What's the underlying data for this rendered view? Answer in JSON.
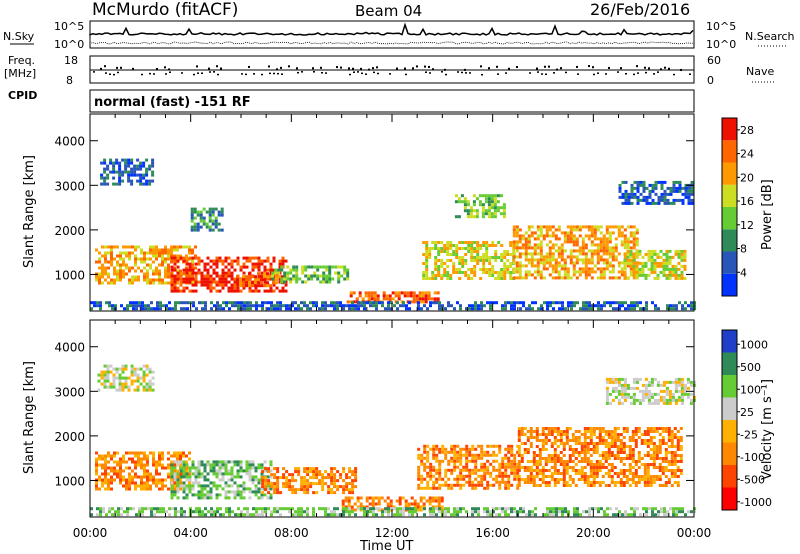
{
  "header": {
    "station": "McMurdo (fitACF)",
    "beam": "Beam 04",
    "date": "26/Feb/2016"
  },
  "top_panels": {
    "nsky_label": "N.Sky",
    "nsearch_label": "N.Search",
    "freq_label": "Freq.",
    "freq_unit": "[MHz]",
    "nave_label": "Nave",
    "cpid_label": "CPID",
    "cpid_text": "normal (fast) -151 RF",
    "noise_ticks": [
      "10^5",
      "10^0"
    ],
    "freq_ticks": [
      "18",
      "8"
    ],
    "nave_ticks": [
      "60",
      "0"
    ]
  },
  "colors": {
    "power": [
      "#0033ff",
      "#2855b8",
      "#2e8b57",
      "#66cc33",
      "#ccdd22",
      "#ff9900",
      "#ff6600",
      "#ee1100"
    ],
    "velocity": [
      "#1f3fc8",
      "#2e8b57",
      "#66cc33",
      "#cccccc",
      "#ffb000",
      "#ff8800",
      "#ff4400",
      "#ff0000"
    ]
  },
  "chart_data": [
    {
      "type": "heatmap",
      "name": "power",
      "ylabel": "Slant Range [km]",
      "xlabel": "Time UT",
      "x_ticks": [
        "00:00",
        "04:00",
        "08:00",
        "12:00",
        "16:00",
        "20:00",
        "00:00"
      ],
      "y_ticks": [
        "1000",
        "2000",
        "3000",
        "4000"
      ],
      "ylim": [
        180,
        4600
      ],
      "xlim": [
        0,
        24
      ],
      "colorbar": {
        "label": "Power [dB]",
        "ticks": [
          "4",
          "8",
          "12",
          "16",
          "20",
          "24",
          "28"
        ],
        "range": [
          0,
          30
        ]
      },
      "regions": [
        {
          "t0": 0.2,
          "t1": 4.2,
          "r0": 820,
          "r1": 1650,
          "level": 5
        },
        {
          "t0": 3.2,
          "t1": 7.8,
          "r0": 650,
          "r1": 1400,
          "level": 7
        },
        {
          "t0": 5.8,
          "t1": 7.6,
          "r0": 780,
          "r1": 1050,
          "level": 6
        },
        {
          "t0": 7.2,
          "t1": 10.2,
          "r0": 820,
          "r1": 1200,
          "level": 3
        },
        {
          "t0": 10.2,
          "t1": 13.8,
          "r0": 380,
          "r1": 620,
          "level": 6
        },
        {
          "t0": 13.2,
          "t1": 16.8,
          "r0": 880,
          "r1": 1750,
          "level": 4
        },
        {
          "t0": 14.5,
          "t1": 16.5,
          "r0": 2300,
          "r1": 2800,
          "level": 3
        },
        {
          "t0": 16.8,
          "t1": 21.8,
          "r0": 950,
          "r1": 2100,
          "level": 5
        },
        {
          "t0": 21.2,
          "t1": 23.6,
          "r0": 900,
          "r1": 1550,
          "level": 4
        },
        {
          "t0": 21.0,
          "t1": 23.9,
          "r0": 2600,
          "r1": 3100,
          "level": 1
        },
        {
          "t0": 0.4,
          "t1": 2.5,
          "r0": 3000,
          "r1": 3600,
          "level": 1
        },
        {
          "t0": 4.0,
          "t1": 5.2,
          "r0": 2000,
          "r1": 2500,
          "level": 2
        },
        {
          "t0": 0.0,
          "t1": 24.0,
          "r0": 240,
          "r1": 400,
          "level": 1
        }
      ]
    },
    {
      "type": "heatmap",
      "name": "velocity",
      "ylabel": "Slant Range [km]",
      "xlabel": "Time UT",
      "x_ticks": [
        "00:00",
        "04:00",
        "08:00",
        "12:00",
        "16:00",
        "20:00",
        "00:00"
      ],
      "y_ticks": [
        "1000",
        "2000",
        "3000",
        "4000"
      ],
      "ylim": [
        180,
        4600
      ],
      "xlim": [
        0,
        24
      ],
      "colorbar": {
        "label": "Velocity [m s⁻¹]",
        "ticks": [
          "1000",
          "500",
          "100",
          "25",
          "-25",
          "-100",
          "-500",
          "-1000"
        ],
        "range": [
          -1000,
          1000
        ]
      },
      "regions": [
        {
          "t0": 0.2,
          "t1": 4.0,
          "r0": 820,
          "r1": 1650,
          "level": 5
        },
        {
          "t0": 3.2,
          "t1": 7.2,
          "r0": 600,
          "r1": 1450,
          "level": 2
        },
        {
          "t0": 6.8,
          "t1": 10.5,
          "r0": 750,
          "r1": 1300,
          "level": 5
        },
        {
          "t0": 10.0,
          "t1": 14.0,
          "r0": 360,
          "r1": 640,
          "level": 5
        },
        {
          "t0": 13.0,
          "t1": 17.0,
          "r0": 850,
          "r1": 1800,
          "level": 5
        },
        {
          "t0": 17.0,
          "t1": 23.5,
          "r0": 900,
          "r1": 2200,
          "level": 5
        },
        {
          "t0": 20.5,
          "t1": 24.0,
          "r0": 2700,
          "r1": 3300,
          "level": 3
        },
        {
          "t0": 0.3,
          "t1": 2.5,
          "r0": 3000,
          "r1": 3600,
          "level": 3
        },
        {
          "t0": 0.0,
          "t1": 24.0,
          "r0": 240,
          "r1": 400,
          "level": 2
        }
      ]
    }
  ]
}
